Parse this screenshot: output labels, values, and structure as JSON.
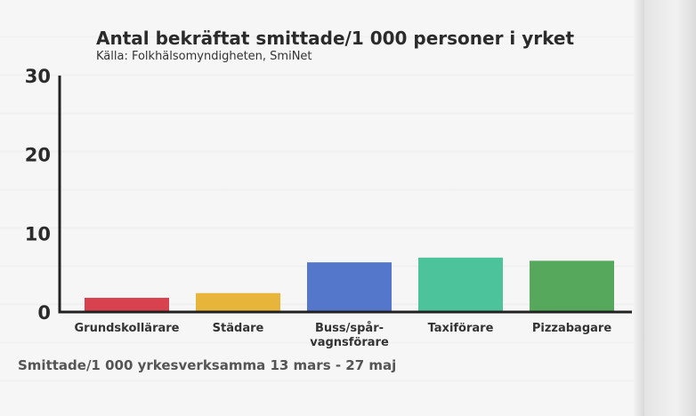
{
  "chart_data": {
    "type": "bar",
    "title": "Antal bekräftat smittade/1 000 personer i yrket",
    "subtitle": "Källa: Folkhälsomyndigheten, SmiNet",
    "xlabel": "Smittade/1 000 yrkesverksamma 13 mars - 27 maj",
    "ylabel": "",
    "ylim": [
      0,
      30
    ],
    "yticks": [
      "0",
      "10",
      "20",
      "30"
    ],
    "grid": false,
    "categories": [
      [
        "Grundskollärare"
      ],
      [
        "Städare"
      ],
      [
        "Buss/spår-",
        "vagnsförare"
      ],
      [
        "Taxiförare"
      ],
      [
        "Pizzabagare"
      ]
    ],
    "values": [
      1.8,
      2.4,
      6.3,
      6.9,
      6.5
    ],
    "colors": [
      "#d8424f",
      "#e6b53a",
      "#5477cc",
      "#4cc39b",
      "#56a85c"
    ]
  }
}
